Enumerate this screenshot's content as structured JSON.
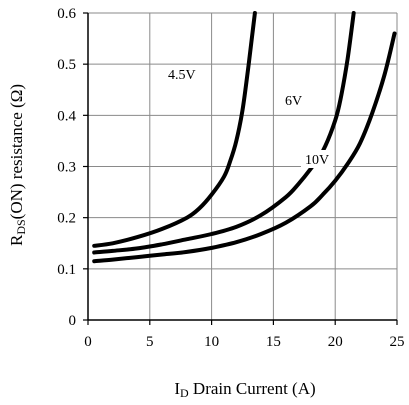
{
  "chart_data": {
    "type": "line",
    "xlabel": {
      "main": "I",
      "sub": "D",
      "rest": " Drain Current (A)"
    },
    "ylabel": {
      "main": "R",
      "sub": "DS",
      "rest": "(ON) resistance (Ω)"
    },
    "xlim": [
      0,
      25
    ],
    "ylim": [
      0,
      0.6
    ],
    "x_ticks": [
      "0",
      "5",
      "10",
      "15",
      "20",
      "25"
    ],
    "y_ticks": [
      "0",
      "0.1",
      "0.2",
      "0.3",
      "0.4",
      "0.5",
      "0.6"
    ],
    "grid": true,
    "series": [
      {
        "name": "4.5V",
        "x": [
          0.5,
          2,
          4,
          6,
          8,
          9,
          10,
          11,
          11.5,
          12,
          12.5,
          13,
          13.5
        ],
        "y": [
          0.145,
          0.15,
          0.162,
          0.178,
          0.2,
          0.218,
          0.245,
          0.28,
          0.31,
          0.35,
          0.41,
          0.5,
          0.6
        ]
      },
      {
        "name": "6V",
        "x": [
          0.5,
          2,
          4,
          6,
          8,
          10,
          12,
          14,
          16,
          17,
          18,
          19,
          20,
          20.5,
          21,
          21.5
        ],
        "y": [
          0.132,
          0.135,
          0.14,
          0.148,
          0.158,
          0.168,
          0.182,
          0.205,
          0.24,
          0.265,
          0.295,
          0.33,
          0.39,
          0.44,
          0.51,
          0.6
        ]
      },
      {
        "name": "10V",
        "x": [
          0.5,
          2,
          4,
          6,
          8,
          10,
          12,
          14,
          16,
          18,
          19,
          20,
          21,
          22,
          23,
          24,
          24.8
        ],
        "y": [
          0.115,
          0.118,
          0.123,
          0.128,
          0.133,
          0.141,
          0.152,
          0.168,
          0.19,
          0.222,
          0.245,
          0.272,
          0.305,
          0.345,
          0.405,
          0.48,
          0.56
        ]
      }
    ]
  }
}
